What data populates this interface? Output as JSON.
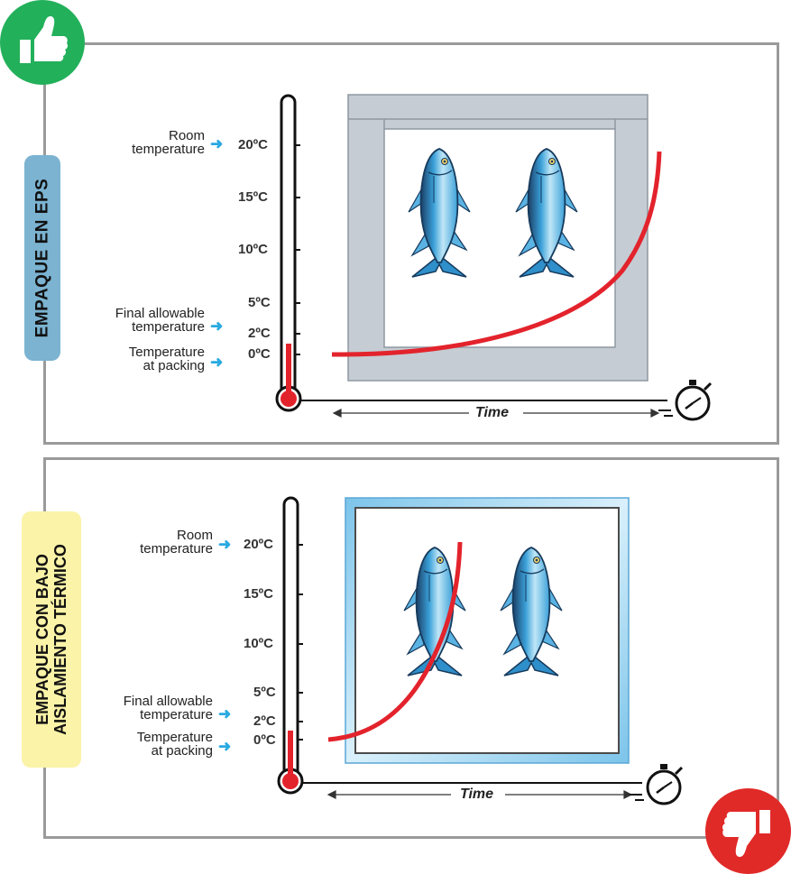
{
  "panels": {
    "top": {
      "label": "EMPAQUE EN EPS",
      "room": [
        "Room",
        "temperature"
      ],
      "final": [
        "Final allowable",
        "temperature"
      ],
      "packing": [
        "Temperature",
        "at packing"
      ],
      "ticks": [
        "20ºC",
        "15ºC",
        "10ºC",
        "5ºC",
        "2ºC",
        "0ºC"
      ],
      "time": "Time"
    },
    "bottom": {
      "label_line1": "EMPAQUE CON BAJO",
      "label_line2": "AISLAMIENTO TÉRMICO",
      "room": [
        "Room",
        "temperature"
      ],
      "final": [
        "Final allowable",
        "temperature"
      ],
      "packing": [
        "Temperature",
        "at packing"
      ],
      "ticks": [
        "20ºC",
        "15ºC",
        "10ºC",
        "5ºC",
        "2ºC",
        "0ºC"
      ],
      "time": "Time"
    }
  },
  "icons": {
    "good": "thumbs-up-icon",
    "bad": "thumbs-down-icon",
    "timer": "stopwatch-icon",
    "fish": "tuna-fish-icon"
  },
  "colors": {
    "good_badge": "#22b05a",
    "bad_badge": "#e02a28",
    "curve": "#e3232c",
    "arrow": "#29a9e1",
    "eps_box": "#c5ccd3",
    "thin_box": "#9fd4ef"
  }
}
